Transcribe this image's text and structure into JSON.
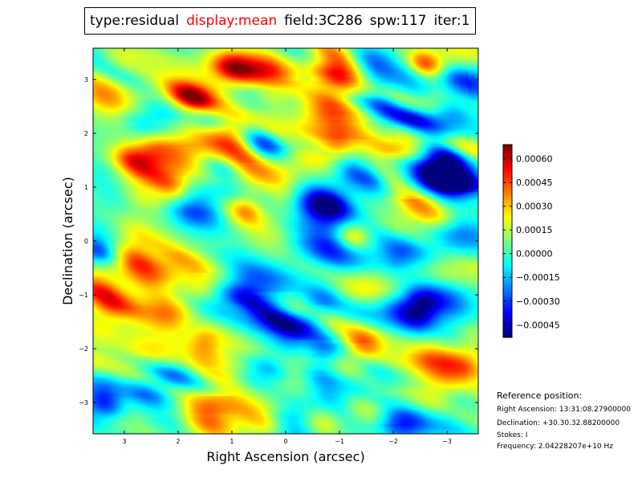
{
  "title": {
    "type": "type:residual",
    "display": "display:mean",
    "field": "field:3C286",
    "spw": "spw:117",
    "iter": "iter:1",
    "display_color": "#ff0000"
  },
  "chart_data": {
    "type": "heatmap",
    "xlabel": "Right Ascension (arcsec)",
    "ylabel": "Declination (arcsec)",
    "xlim": [
      3.58,
      -3.58
    ],
    "ylim": [
      -3.58,
      3.58
    ],
    "xticks": [
      3,
      2,
      1,
      0,
      -1,
      -2,
      -3
    ],
    "xtick_labels": [
      "3",
      "2",
      "1",
      "0",
      "−1",
      "−2",
      "−3"
    ],
    "yticks": [
      3,
      2,
      1,
      0,
      -1,
      -2,
      -3
    ],
    "ytick_labels": [
      "3",
      "2",
      "1",
      "0",
      "−1",
      "−2",
      "−3"
    ],
    "colormap": "jet",
    "colorbar": {
      "range": [
        -0.00053,
        0.00069
      ],
      "ticks": [
        0.0006,
        0.00045,
        0.0003,
        0.00015,
        0.0,
        -0.00015,
        -0.0003,
        -0.00045
      ],
      "tick_labels": [
        "0.00060",
        "0.00045",
        "0.00030",
        "0.00015",
        "0.00000",
        "−0.00015",
        "−0.00030",
        "−0.00045"
      ]
    }
  },
  "reference": {
    "heading": "Reference position:",
    "ra": "Right Ascension: 13:31:08.27900000",
    "dec": "Declination: +30.30.32.88200000",
    "stokes": "Stokes: I",
    "freq": "Frequency: 2.04228207e+10 Hz"
  }
}
